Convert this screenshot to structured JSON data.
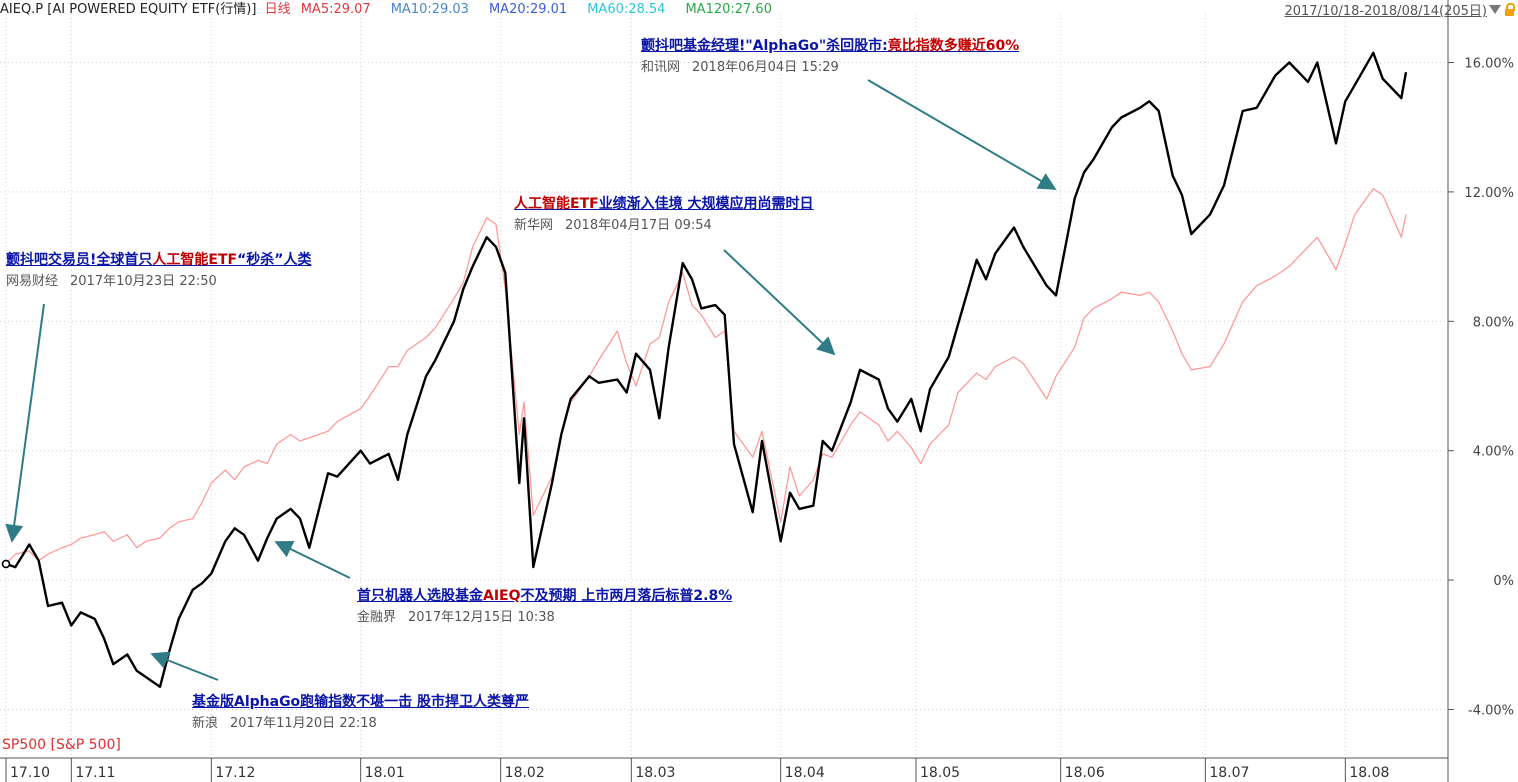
{
  "header": {
    "symbol": "AIEQ.P",
    "name": "[AI POWERED EQUITY ETF(行情)]",
    "period": "日线",
    "ma": [
      {
        "label": "MA5:29.07",
        "color": "#e0383e"
      },
      {
        "label": "MA10:29.03",
        "color": "#4a86c8"
      },
      {
        "label": "MA20:29.01",
        "color": "#3d5fd8"
      },
      {
        "label": "MA60:28.54",
        "color": "#29c8d8"
      },
      {
        "label": "MA120:27.60",
        "color": "#2aa84a"
      }
    ],
    "date_range": "2017/10/18-2018/08/14(205日)",
    "dropdown_icon": "triangle-down-icon",
    "lock_icon": "lock-icon"
  },
  "legend_series": "SP500 [S&P 500]",
  "chart_data": {
    "type": "line",
    "ylim": [
      -5.5,
      17.5
    ],
    "y_ticks": [
      16,
      12,
      8,
      4,
      0,
      -4
    ],
    "y_tick_labels": [
      "16.00%",
      "12.00%",
      "8.00%",
      "4.00%",
      "0%",
      "-4.00%"
    ],
    "x_tick_labels": [
      "17.10",
      "17.11",
      "17.12",
      "18.01",
      "18.02",
      "18.03",
      "18.04",
      "18.05",
      "18.06",
      "18.07",
      "18.08"
    ],
    "x_tick_dates": [
      "2017-10-18",
      "2017-11-01",
      "2017-12-01",
      "2018-01-02",
      "2018-02-01",
      "2018-03-01",
      "2018-04-02",
      "2018-05-01",
      "2018-06-01",
      "2018-07-02",
      "2018-08-01"
    ],
    "date_start": "2017-10-18",
    "date_end": "2018-08-14",
    "grid": true,
    "series": [
      {
        "name": "AIEQ.P",
        "color": "#000000",
        "keypoints": [
          [
            "2017-10-18",
            0.5
          ],
          [
            "2017-10-20",
            0.4
          ],
          [
            "2017-10-23",
            1.1
          ],
          [
            "2017-10-25",
            0.6
          ],
          [
            "2017-10-27",
            -0.8
          ],
          [
            "2017-10-30",
            -0.7
          ],
          [
            "2017-11-01",
            -1.4
          ],
          [
            "2017-11-03",
            -1.0
          ],
          [
            "2017-11-06",
            -1.2
          ],
          [
            "2017-11-08",
            -1.8
          ],
          [
            "2017-11-10",
            -2.6
          ],
          [
            "2017-11-13",
            -2.3
          ],
          [
            "2017-11-15",
            -2.8
          ],
          [
            "2017-11-17",
            -3.0
          ],
          [
            "2017-11-20",
            -3.3
          ],
          [
            "2017-11-22",
            -2.2
          ],
          [
            "2017-11-24",
            -1.2
          ],
          [
            "2017-11-27",
            -0.3
          ],
          [
            "2017-11-29",
            -0.1
          ],
          [
            "2017-12-01",
            0.2
          ],
          [
            "2017-12-04",
            1.2
          ],
          [
            "2017-12-06",
            1.6
          ],
          [
            "2017-12-08",
            1.4
          ],
          [
            "2017-12-11",
            0.6
          ],
          [
            "2017-12-13",
            1.3
          ],
          [
            "2017-12-15",
            1.9
          ],
          [
            "2017-12-18",
            2.2
          ],
          [
            "2017-12-20",
            1.9
          ],
          [
            "2017-12-22",
            1.0
          ],
          [
            "2017-12-26",
            3.3
          ],
          [
            "2017-12-28",
            3.2
          ],
          [
            "2018-01-02",
            4.0
          ],
          [
            "2018-01-04",
            3.6
          ],
          [
            "2018-01-08",
            3.9
          ],
          [
            "2018-01-10",
            3.1
          ],
          [
            "2018-01-12",
            4.5
          ],
          [
            "2018-01-16",
            6.3
          ],
          [
            "2018-01-18",
            6.8
          ],
          [
            "2018-01-22",
            8.0
          ],
          [
            "2018-01-24",
            9.0
          ],
          [
            "2018-01-26",
            9.7
          ],
          [
            "2018-01-29",
            10.6
          ],
          [
            "2018-01-31",
            10.3
          ],
          [
            "2018-02-02",
            9.5
          ],
          [
            "2018-02-05",
            3.0
          ],
          [
            "2018-02-06",
            5.0
          ],
          [
            "2018-02-08",
            0.4
          ],
          [
            "2018-02-12",
            3.0
          ],
          [
            "2018-02-14",
            4.5
          ],
          [
            "2018-02-16",
            5.6
          ],
          [
            "2018-02-20",
            6.3
          ],
          [
            "2018-02-22",
            6.1
          ],
          [
            "2018-02-26",
            6.2
          ],
          [
            "2018-02-28",
            5.8
          ],
          [
            "2018-03-02",
            7.0
          ],
          [
            "2018-03-05",
            6.5
          ],
          [
            "2018-03-07",
            5.0
          ],
          [
            "2018-03-09",
            7.2
          ],
          [
            "2018-03-12",
            9.8
          ],
          [
            "2018-03-14",
            9.3
          ],
          [
            "2018-03-16",
            8.4
          ],
          [
            "2018-03-19",
            8.5
          ],
          [
            "2018-03-21",
            8.2
          ],
          [
            "2018-03-23",
            4.2
          ],
          [
            "2018-03-27",
            2.1
          ],
          [
            "2018-03-29",
            4.3
          ],
          [
            "2018-04-02",
            1.2
          ],
          [
            "2018-04-04",
            2.7
          ],
          [
            "2018-04-06",
            2.2
          ],
          [
            "2018-04-09",
            2.3
          ],
          [
            "2018-04-11",
            4.3
          ],
          [
            "2018-04-13",
            4.0
          ],
          [
            "2018-04-17",
            5.5
          ],
          [
            "2018-04-19",
            6.5
          ],
          [
            "2018-04-23",
            6.2
          ],
          [
            "2018-04-25",
            5.3
          ],
          [
            "2018-04-27",
            4.9
          ],
          [
            "2018-04-30",
            5.6
          ],
          [
            "2018-05-02",
            4.6
          ],
          [
            "2018-05-04",
            5.9
          ],
          [
            "2018-05-08",
            6.9
          ],
          [
            "2018-05-10",
            7.9
          ],
          [
            "2018-05-14",
            9.9
          ],
          [
            "2018-05-16",
            9.3
          ],
          [
            "2018-05-18",
            10.1
          ],
          [
            "2018-05-22",
            10.9
          ],
          [
            "2018-05-24",
            10.3
          ],
          [
            "2018-05-29",
            9.1
          ],
          [
            "2018-05-31",
            8.8
          ],
          [
            "2018-06-04",
            11.8
          ],
          [
            "2018-06-06",
            12.6
          ],
          [
            "2018-06-08",
            13.0
          ],
          [
            "2018-06-12",
            14.0
          ],
          [
            "2018-06-14",
            14.3
          ],
          [
            "2018-06-18",
            14.6
          ],
          [
            "2018-06-20",
            14.8
          ],
          [
            "2018-06-22",
            14.5
          ],
          [
            "2018-06-25",
            12.5
          ],
          [
            "2018-06-27",
            11.9
          ],
          [
            "2018-06-29",
            10.7
          ],
          [
            "2018-07-03",
            11.3
          ],
          [
            "2018-07-06",
            12.2
          ],
          [
            "2018-07-10",
            14.5
          ],
          [
            "2018-07-13",
            14.6
          ],
          [
            "2018-07-17",
            15.6
          ],
          [
            "2018-07-20",
            16.0
          ],
          [
            "2018-07-24",
            15.4
          ],
          [
            "2018-07-26",
            16.0
          ],
          [
            "2018-07-30",
            13.5
          ],
          [
            "2018-08-01",
            14.8
          ],
          [
            "2018-08-03",
            15.3
          ],
          [
            "2018-08-07",
            16.3
          ],
          [
            "2018-08-09",
            15.5
          ],
          [
            "2018-08-13",
            14.9
          ],
          [
            "2018-08-14",
            15.7
          ]
        ]
      },
      {
        "name": "SP500 [S&P 500]",
        "color": "#ff9a9a",
        "keypoints": [
          [
            "2017-10-18",
            0.5
          ],
          [
            "2017-10-20",
            0.8
          ],
          [
            "2017-10-23",
            0.9
          ],
          [
            "2017-10-25",
            0.6
          ],
          [
            "2017-10-27",
            0.8
          ],
          [
            "2017-10-30",
            1.0
          ],
          [
            "2017-11-01",
            1.1
          ],
          [
            "2017-11-03",
            1.3
          ],
          [
            "2017-11-06",
            1.4
          ],
          [
            "2017-11-08",
            1.5
          ],
          [
            "2017-11-10",
            1.2
          ],
          [
            "2017-11-13",
            1.4
          ],
          [
            "2017-11-15",
            1.0
          ],
          [
            "2017-11-17",
            1.2
          ],
          [
            "2017-11-20",
            1.3
          ],
          [
            "2017-11-22",
            1.6
          ],
          [
            "2017-11-24",
            1.8
          ],
          [
            "2017-11-27",
            1.9
          ],
          [
            "2017-11-29",
            2.4
          ],
          [
            "2017-12-01",
            3.0
          ],
          [
            "2017-12-04",
            3.4
          ],
          [
            "2017-12-06",
            3.1
          ],
          [
            "2017-12-08",
            3.5
          ],
          [
            "2017-12-11",
            3.7
          ],
          [
            "2017-12-13",
            3.6
          ],
          [
            "2017-12-15",
            4.2
          ],
          [
            "2017-12-18",
            4.5
          ],
          [
            "2017-12-20",
            4.3
          ],
          [
            "2017-12-22",
            4.4
          ],
          [
            "2017-12-26",
            4.6
          ],
          [
            "2017-12-28",
            4.9
          ],
          [
            "2018-01-02",
            5.3
          ],
          [
            "2018-01-04",
            5.7
          ],
          [
            "2018-01-08",
            6.6
          ],
          [
            "2018-01-10",
            6.6
          ],
          [
            "2018-01-12",
            7.1
          ],
          [
            "2018-01-16",
            7.5
          ],
          [
            "2018-01-18",
            7.8
          ],
          [
            "2018-01-22",
            8.7
          ],
          [
            "2018-01-24",
            9.2
          ],
          [
            "2018-01-26",
            10.3
          ],
          [
            "2018-01-29",
            11.2
          ],
          [
            "2018-01-31",
            11.0
          ],
          [
            "2018-02-02",
            9.0
          ],
          [
            "2018-02-05",
            4.5
          ],
          [
            "2018-02-06",
            5.5
          ],
          [
            "2018-02-08",
            2.0
          ],
          [
            "2018-02-12",
            3.2
          ],
          [
            "2018-02-14",
            4.5
          ],
          [
            "2018-02-16",
            5.5
          ],
          [
            "2018-02-20",
            6.3
          ],
          [
            "2018-02-22",
            6.8
          ],
          [
            "2018-02-26",
            7.7
          ],
          [
            "2018-02-28",
            6.7
          ],
          [
            "2018-03-02",
            6.0
          ],
          [
            "2018-03-05",
            7.3
          ],
          [
            "2018-03-07",
            7.5
          ],
          [
            "2018-03-09",
            8.6
          ],
          [
            "2018-03-12",
            9.5
          ],
          [
            "2018-03-14",
            8.5
          ],
          [
            "2018-03-16",
            8.2
          ],
          [
            "2018-03-19",
            7.5
          ],
          [
            "2018-03-21",
            7.7
          ],
          [
            "2018-03-23",
            4.6
          ],
          [
            "2018-03-27",
            3.8
          ],
          [
            "2018-03-29",
            4.6
          ],
          [
            "2018-04-02",
            1.8
          ],
          [
            "2018-04-04",
            3.5
          ],
          [
            "2018-04-06",
            2.6
          ],
          [
            "2018-04-09",
            3.1
          ],
          [
            "2018-04-11",
            3.9
          ],
          [
            "2018-04-13",
            3.8
          ],
          [
            "2018-04-17",
            4.8
          ],
          [
            "2018-04-19",
            5.2
          ],
          [
            "2018-04-23",
            4.8
          ],
          [
            "2018-04-25",
            4.3
          ],
          [
            "2018-04-27",
            4.6
          ],
          [
            "2018-04-30",
            4.1
          ],
          [
            "2018-05-02",
            3.6
          ],
          [
            "2018-05-04",
            4.2
          ],
          [
            "2018-05-08",
            4.8
          ],
          [
            "2018-05-10",
            5.8
          ],
          [
            "2018-05-14",
            6.4
          ],
          [
            "2018-05-16",
            6.2
          ],
          [
            "2018-05-18",
            6.6
          ],
          [
            "2018-05-22",
            6.9
          ],
          [
            "2018-05-24",
            6.7
          ],
          [
            "2018-05-29",
            5.6
          ],
          [
            "2018-05-31",
            6.3
          ],
          [
            "2018-06-04",
            7.2
          ],
          [
            "2018-06-06",
            8.1
          ],
          [
            "2018-06-08",
            8.4
          ],
          [
            "2018-06-12",
            8.7
          ],
          [
            "2018-06-14",
            8.9
          ],
          [
            "2018-06-18",
            8.8
          ],
          [
            "2018-06-20",
            8.9
          ],
          [
            "2018-06-22",
            8.6
          ],
          [
            "2018-06-25",
            7.7
          ],
          [
            "2018-06-27",
            7.0
          ],
          [
            "2018-06-29",
            6.5
          ],
          [
            "2018-07-03",
            6.6
          ],
          [
            "2018-07-06",
            7.3
          ],
          [
            "2018-07-10",
            8.6
          ],
          [
            "2018-07-13",
            9.1
          ],
          [
            "2018-07-17",
            9.4
          ],
          [
            "2018-07-20",
            9.7
          ],
          [
            "2018-07-24",
            10.3
          ],
          [
            "2018-07-26",
            10.6
          ],
          [
            "2018-07-30",
            9.6
          ],
          [
            "2018-08-01",
            10.4
          ],
          [
            "2018-08-03",
            11.3
          ],
          [
            "2018-08-07",
            12.1
          ],
          [
            "2018-08-09",
            11.9
          ],
          [
            "2018-08-13",
            10.6
          ],
          [
            "2018-08-14",
            11.3
          ]
        ]
      }
    ],
    "annotations": [
      {
        "title_parts": [
          {
            "text": "颤抖吧交易员!全球首只",
            "hl": false
          },
          {
            "text": "人工智能ETF",
            "hl": true
          },
          {
            "text": "“秒杀”人类",
            "hl": false
          }
        ],
        "source": "网易财经",
        "time": "2017年10月23日 22:50",
        "date": "2017-10-23"
      },
      {
        "title_parts": [
          {
            "text": "基金版AlphaGo跑输指数不堪一击 股市捍卫人类尊严",
            "hl": false
          }
        ],
        "source": "新浪",
        "time": "2017年11月20日 22:18",
        "date": "2017-11-20"
      },
      {
        "title_parts": [
          {
            "text": "首只机器人选股基金",
            "hl": false
          },
          {
            "text": "AIEQ",
            "hl": true
          },
          {
            "text": "不及预期 上市两月落后标普2.8%",
            "hl": false
          }
        ],
        "source": "金融界",
        "time": "2017年12月15日 10:38",
        "date": "2017-12-22"
      },
      {
        "title_parts": [
          {
            "text": "人工智能ETF",
            "hl": true
          },
          {
            "text": "业绩渐入佳境 大规模应用尚需时日",
            "hl": false
          }
        ],
        "source": "新华网",
        "time": "2018年04月17日 09:54",
        "date": "2018-04-17"
      },
      {
        "title_parts": [
          {
            "text": "颤抖吧基金经理!\"AlphaGo\"杀回股市:",
            "hl": false
          },
          {
            "text": "竟比指数多赚近60%",
            "hl": true
          }
        ],
        "source": "和讯网",
        "time": "2018年06月04日 15:29",
        "date": "2018-06-04"
      }
    ]
  }
}
